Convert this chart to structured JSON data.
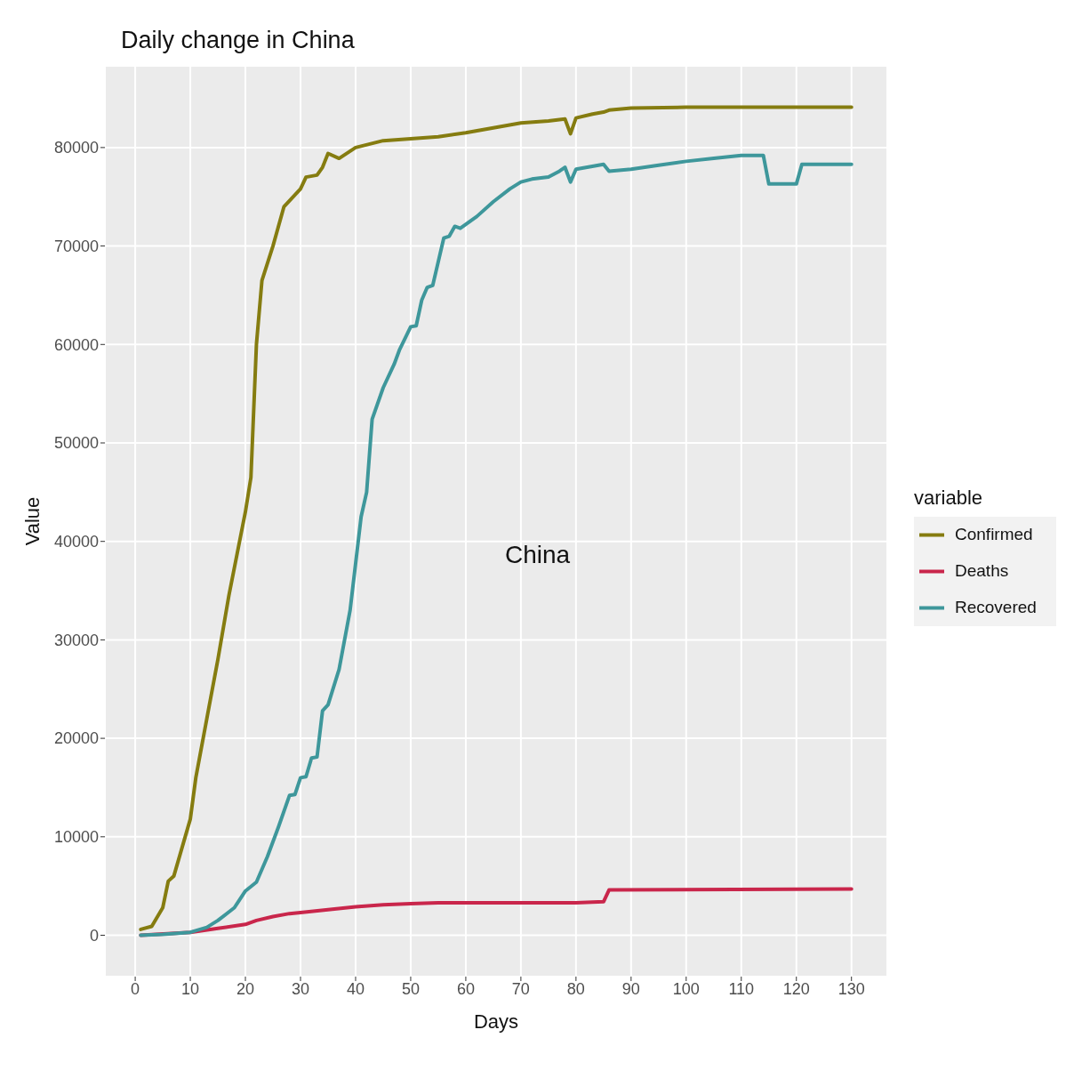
{
  "chart_data": {
    "type": "line",
    "title": "Daily change in China",
    "xlabel": "Days",
    "ylabel": "Value",
    "legend_title": "variable",
    "legend": "right",
    "grid": true,
    "line_style": "solid",
    "marker": "none",
    "xlim": [
      -5.5,
      136.5
    ],
    "xticks": [
      0,
      10,
      20,
      30,
      40,
      50,
      60,
      70,
      80,
      90,
      100,
      110,
      120,
      130
    ],
    "ylim": [
      -4200,
      88300
    ],
    "yticks": [
      0,
      10000,
      20000,
      30000,
      40000,
      50000,
      60000,
      70000,
      80000
    ],
    "annotations": [
      "China"
    ],
    "series": [
      {
        "name": "Confirmed",
        "color": "#857c10",
        "x": [
          1,
          3,
          5,
          6,
          7,
          10,
          11,
          13,
          15,
          17,
          20,
          21,
          22,
          23,
          25,
          27,
          30,
          31,
          33,
          34,
          35,
          37,
          40,
          45,
          50,
          55,
          60,
          65,
          70,
          75,
          78,
          79,
          80,
          83,
          85,
          86,
          90,
          100,
          130
        ],
        "values": [
          600,
          900,
          2800,
          5500,
          6000,
          11800,
          16000,
          22000,
          28000,
          34500,
          43000,
          46500,
          60000,
          66500,
          70000,
          74000,
          75800,
          77000,
          77200,
          78000,
          79400,
          78900,
          80000,
          80700,
          80900,
          81100,
          81500,
          82000,
          82500,
          82700,
          82900,
          81400,
          83000,
          83400,
          83600,
          83800,
          84000,
          84100,
          84100
        ]
      },
      {
        "name": "Deaths",
        "color": "#c9264b",
        "x": [
          1,
          10,
          15,
          20,
          22,
          25,
          28,
          30,
          35,
          40,
          45,
          50,
          55,
          60,
          70,
          80,
          85,
          86,
          130
        ],
        "values": [
          0,
          300,
          700,
          1100,
          1500,
          1900,
          2200,
          2300,
          2600,
          2900,
          3100,
          3200,
          3300,
          3300,
          3300,
          3300,
          3400,
          4600,
          4700
        ]
      },
      {
        "name": "Recovered",
        "color": "#3e979b",
        "x": [
          1,
          5,
          10,
          13,
          15,
          18,
          20,
          22,
          24,
          26,
          28,
          29,
          30,
          31,
          32,
          33,
          34,
          35,
          37,
          39,
          41,
          42,
          43,
          45,
          47,
          48,
          50,
          51,
          52,
          53,
          54,
          56,
          57,
          58,
          59,
          62,
          65,
          68,
          70,
          72,
          75,
          77,
          78,
          79,
          80,
          85,
          86,
          90,
          95,
          100,
          105,
          110,
          114,
          115,
          120,
          121,
          130
        ],
        "values": [
          0,
          100,
          300,
          800,
          1500,
          2800,
          4500,
          5400,
          8000,
          11000,
          14200,
          14300,
          16000,
          16100,
          18000,
          18100,
          22800,
          23400,
          27000,
          33000,
          42500,
          45000,
          52400,
          55600,
          58000,
          59500,
          61800,
          61900,
          64500,
          65800,
          66000,
          70800,
          71000,
          72000,
          71800,
          73000,
          74500,
          75800,
          76500,
          76800,
          77000,
          77600,
          78000,
          76500,
          77800,
          78300,
          77600,
          77800,
          78200,
          78600,
          78900,
          79200,
          79200,
          76300,
          76300,
          78300,
          78300
        ]
      }
    ]
  }
}
